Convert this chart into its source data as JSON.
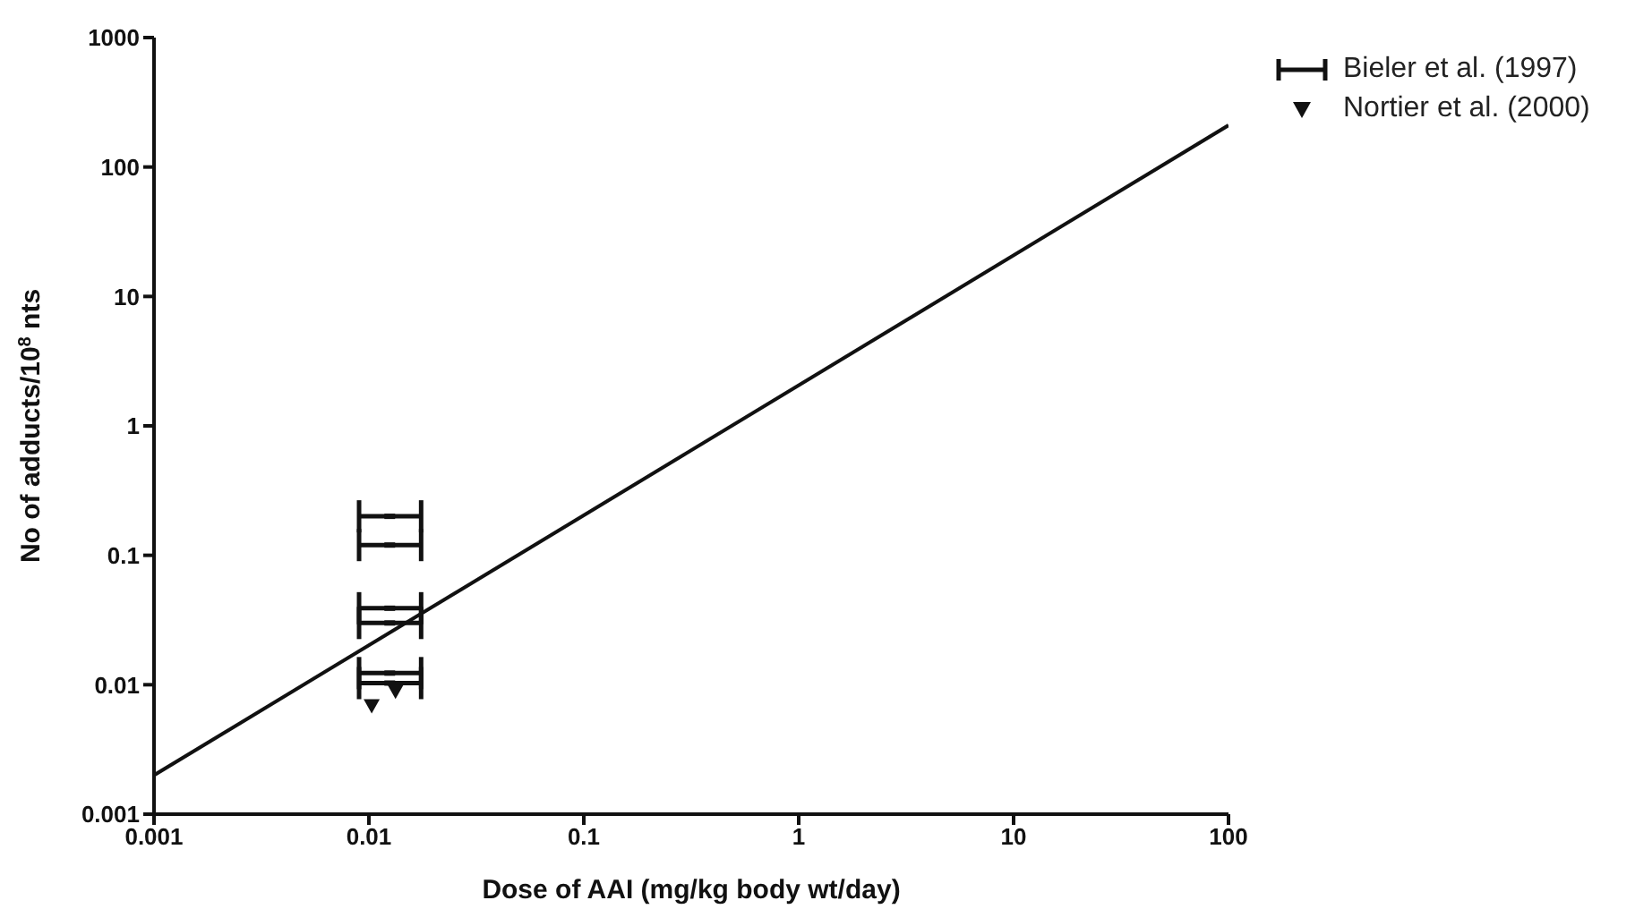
{
  "chart_data": {
    "type": "scatter",
    "xlabel": "Dose of AAI (mg/kg body wt/day)",
    "ylabel": "No of adducts/10$^{8}$ nts",
    "log": "xy",
    "xlim": [
      0.001,
      100
    ],
    "xticks": [
      0.001,
      0.01,
      0.1,
      1,
      10,
      100
    ],
    "ylim": [
      0.001,
      1000
    ],
    "yticks": [
      0.001,
      0.01,
      0.1,
      1,
      10,
      100,
      1000
    ],
    "legend": "top right",
    "series": [
      {
        "name": "Bieler et al. (1997)",
        "type": "scatter",
        "color": "#111111",
        "x": [
          0.0125,
          0.0125,
          0.0125,
          0.0125,
          0.0125,
          0.0125
        ],
        "values": [
          0.2,
          0.12,
          0.039,
          0.03,
          0.0123,
          0.0103
        ],
        "xerrors": [
          [
            0.009,
            0.0175
          ],
          [
            0.009,
            0.0175
          ],
          [
            0.009,
            0.0175
          ],
          [
            0.009,
            0.0175
          ],
          [
            0.009,
            0.0175
          ],
          [
            0.009,
            0.0175
          ]
        ]
      },
      {
        "name": "Nortier et al. (2000)",
        "type": "scatter",
        "marker": "triangle",
        "color": "#111111",
        "x": [
          0.0103,
          0.0133
        ],
        "values": [
          0.0068,
          0.0088
        ]
      },
      {
        "type": "line",
        "line_style": "solid",
        "color": "#111111",
        "x": [
          0.001,
          100
        ],
        "values": [
          0.002,
          210
        ]
      }
    ]
  }
}
